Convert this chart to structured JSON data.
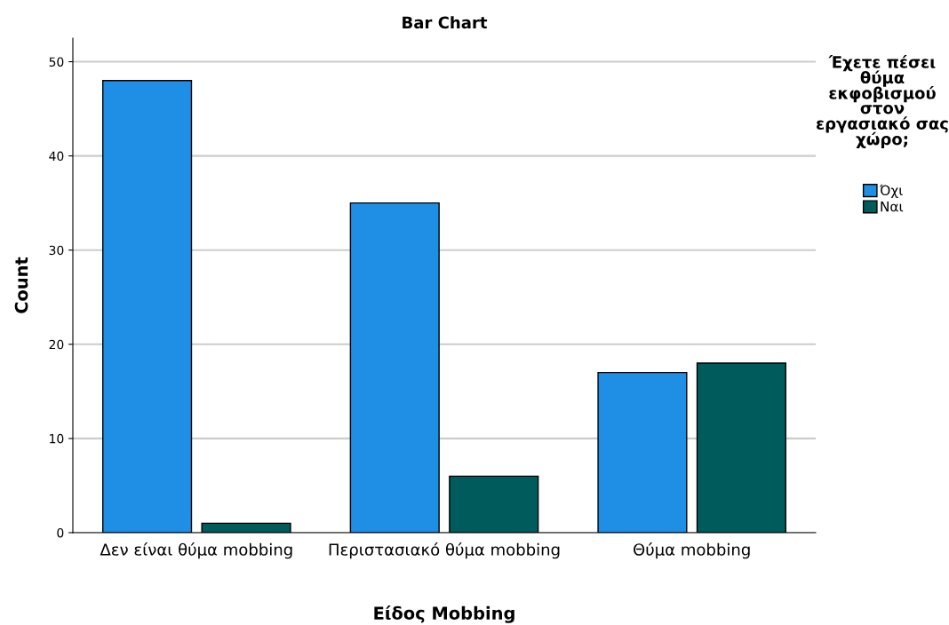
{
  "chart_data": {
    "type": "bar",
    "title": "Bar Chart",
    "xlabel": "Είδος Mobbing",
    "ylabel": "Count",
    "legend_title": "Έχετε πέσει θύμα εκφοβισμού στον εργασιακό σας χώρο;",
    "categories": [
      "Δεν είναι θύμα mobbing",
      "Περιστασιακό θύμα mobbing",
      "Θύμα mobbing"
    ],
    "series": [
      {
        "name": "Όχι",
        "color": "#1f8fe6",
        "values": [
          48,
          35,
          17
        ]
      },
      {
        "name": "Ναι",
        "color": "#005c5c",
        "values": [
          1,
          6,
          18
        ]
      }
    ],
    "ylim": [
      0,
      52.5
    ],
    "yticks": [
      0,
      10,
      20,
      30,
      40,
      50
    ],
    "grid": "y",
    "legend": "right"
  }
}
